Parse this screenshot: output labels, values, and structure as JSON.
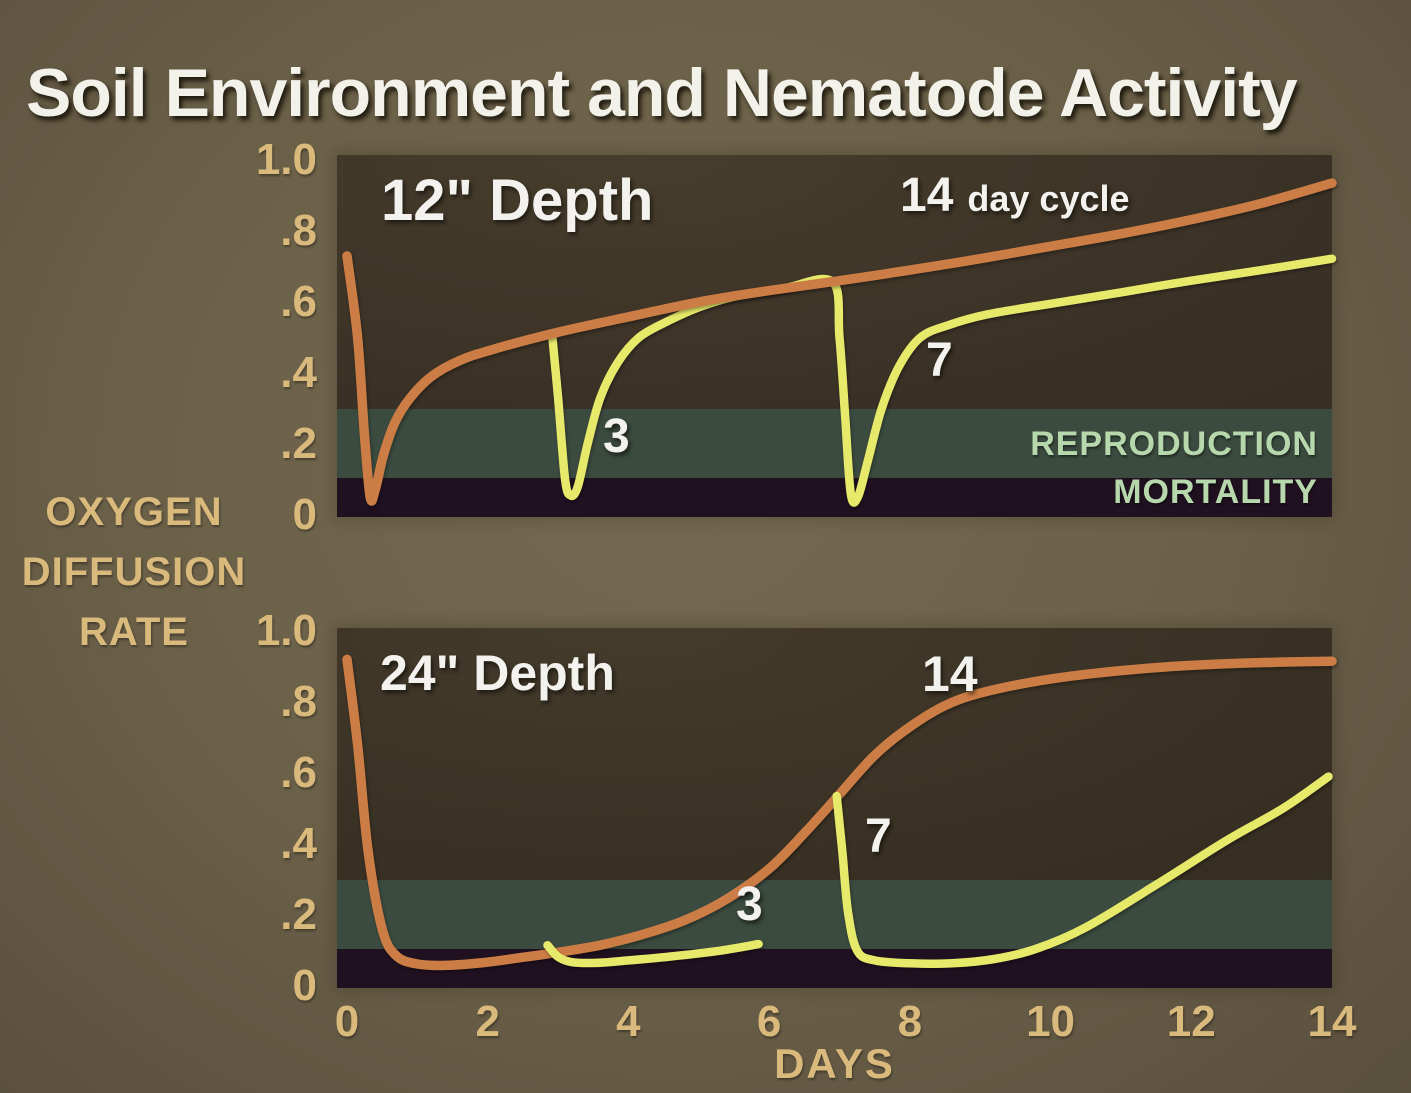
{
  "title": "Soil Environment and Nematode Activity",
  "y_axis": {
    "label_lines": [
      "OXYGEN",
      "DIFFUSION",
      "RATE"
    ]
  },
  "x_axis": {
    "label": "DAYS",
    "ticks": [
      {
        "label": "0",
        "value": 0
      },
      {
        "label": "2",
        "value": 2
      },
      {
        "label": "4",
        "value": 4
      },
      {
        "label": "6",
        "value": 6
      },
      {
        "label": "8",
        "value": 8
      },
      {
        "label": "10",
        "value": 10
      },
      {
        "label": "12",
        "value": 12
      },
      {
        "label": "14",
        "value": 14
      }
    ]
  },
  "colors": {
    "background": "#6b6048",
    "plot_background": "#3a3126",
    "reproduction_band": "#3b4b3f",
    "mortality_band": "#201120",
    "cycle_14_line": "#cb7d45",
    "short_cycle_line": "#e7e96a",
    "axis_text": "#d9ba7c",
    "band_label_text": "#b7d8ac",
    "title_text": "#f2f1ea"
  },
  "chart_data": [
    {
      "type": "line",
      "title": "12\" Depth",
      "x_range": [
        0,
        14
      ],
      "y_range": [
        0,
        1.0
      ],
      "grid": false,
      "legend": "none",
      "ylabel": "OXYGEN DIFFUSION RATE",
      "xlabel": "DAYS",
      "y_ticks": [
        {
          "label": "1.0",
          "value": 1.0
        },
        {
          "label": ".8",
          "value": 0.8
        },
        {
          "label": ".6",
          "value": 0.6
        },
        {
          "label": ".4",
          "value": 0.4
        },
        {
          "label": ".2",
          "value": 0.2
        },
        {
          "label": "0",
          "value": 0
        }
      ],
      "bands": [
        {
          "name": "reproduction",
          "label": "REPRODUCTION",
          "from": 0.105,
          "to": 0.3,
          "color": "#3b4b3f"
        },
        {
          "name": "mortality",
          "label": "MORTALITY",
          "from": 0,
          "to": 0.105,
          "color": "#201120"
        }
      ],
      "annotations": [
        {
          "name": "depth",
          "text": "12\" Depth"
        },
        {
          "name": "cycle-number",
          "text": "14"
        },
        {
          "name": "cycle-suffix",
          "text": "day cycle"
        },
        {
          "name": "dip-3",
          "text": "3"
        },
        {
          "name": "dip-7",
          "text": "7"
        }
      ],
      "series": [
        {
          "name": "3 and 7 day cycles",
          "color": "#e7e96a",
          "width": 8.5,
          "points": [
            [
              2.92,
              0.5
            ],
            [
              3.0,
              0.33
            ],
            [
              3.1,
              0.1
            ],
            [
              3.18,
              0.055
            ],
            [
              3.28,
              0.08
            ],
            [
              3.42,
              0.2
            ],
            [
              3.6,
              0.33
            ],
            [
              3.85,
              0.43
            ],
            [
              4.15,
              0.5
            ],
            [
              4.55,
              0.545
            ],
            [
              5.0,
              0.585
            ],
            [
              5.5,
              0.615
            ],
            [
              6.2,
              0.638
            ],
            [
              6.9,
              0.657
            ],
            [
              7.0,
              0.5
            ],
            [
              7.08,
              0.28
            ],
            [
              7.16,
              0.06
            ],
            [
              7.26,
              0.05
            ],
            [
              7.4,
              0.15
            ],
            [
              7.6,
              0.3
            ],
            [
              7.85,
              0.42
            ],
            [
              8.15,
              0.5
            ],
            [
              8.55,
              0.535
            ],
            [
              9.1,
              0.565
            ],
            [
              10,
              0.595
            ],
            [
              11,
              0.627
            ],
            [
              12,
              0.66
            ],
            [
              13,
              0.69
            ],
            [
              14,
              0.722
            ]
          ]
        },
        {
          "name": "14 day cycle",
          "color": "#cb7d45",
          "width": 9.5,
          "points": [
            [
              0,
              0.73
            ],
            [
              0.15,
              0.5
            ],
            [
              0.25,
              0.22
            ],
            [
              0.33,
              0.05
            ],
            [
              0.4,
              0.07
            ],
            [
              0.52,
              0.17
            ],
            [
              0.68,
              0.26
            ],
            [
              0.9,
              0.33
            ],
            [
              1.2,
              0.39
            ],
            [
              1.6,
              0.435
            ],
            [
              2.1,
              0.468
            ],
            [
              3,
              0.515
            ],
            [
              4,
              0.558
            ],
            [
              5,
              0.6
            ],
            [
              6,
              0.632
            ],
            [
              7,
              0.66
            ],
            [
              8,
              0.69
            ],
            [
              9,
              0.722
            ],
            [
              10,
              0.757
            ],
            [
              11,
              0.792
            ],
            [
              12,
              0.832
            ],
            [
              13,
              0.878
            ],
            [
              14,
              0.935
            ]
          ]
        }
      ]
    },
    {
      "type": "line",
      "title": "24\" Depth",
      "x_range": [
        0,
        14
      ],
      "y_range": [
        0,
        1.0
      ],
      "grid": false,
      "legend": "none",
      "ylabel": "OXYGEN DIFFUSION RATE",
      "xlabel": "DAYS",
      "y_ticks": [
        {
          "label": "1.0",
          "value": 1.0
        },
        {
          "label": ".8",
          "value": 0.8
        },
        {
          "label": ".6",
          "value": 0.6
        },
        {
          "label": ".4",
          "value": 0.4
        },
        {
          "label": ".2",
          "value": 0.2
        },
        {
          "label": "0",
          "value": 0
        }
      ],
      "bands": [
        {
          "name": "reproduction",
          "label": "",
          "from": 0.105,
          "to": 0.3,
          "color": "#3b4b3f"
        },
        {
          "name": "mortality",
          "label": "",
          "from": 0,
          "to": 0.105,
          "color": "#201120"
        }
      ],
      "annotations": [
        {
          "name": "depth",
          "text": "24\" Depth"
        },
        {
          "name": "cycle-14",
          "text": "14"
        },
        {
          "name": "dip-7",
          "text": "7"
        },
        {
          "name": "dip-3",
          "text": "3"
        }
      ],
      "series": [
        {
          "name": "14 day cycle",
          "color": "#cb7d45",
          "width": 9.5,
          "points": [
            [
              0,
              0.92
            ],
            [
              0.15,
              0.68
            ],
            [
              0.3,
              0.38
            ],
            [
              0.5,
              0.16
            ],
            [
              0.7,
              0.085
            ],
            [
              1.0,
              0.062
            ],
            [
              1.4,
              0.058
            ],
            [
              1.9,
              0.065
            ],
            [
              2.4,
              0.078
            ],
            [
              3.0,
              0.095
            ],
            [
              3.6,
              0.115
            ],
            [
              4.2,
              0.145
            ],
            [
              4.8,
              0.185
            ],
            [
              5.4,
              0.245
            ],
            [
              6.0,
              0.33
            ],
            [
              6.5,
              0.43
            ],
            [
              7.0,
              0.54
            ],
            [
              7.5,
              0.65
            ],
            [
              8.0,
              0.73
            ],
            [
              8.5,
              0.79
            ],
            [
              9.0,
              0.825
            ],
            [
              9.7,
              0.855
            ],
            [
              10.5,
              0.878
            ],
            [
              11.5,
              0.897
            ],
            [
              12.5,
              0.908
            ],
            [
              13.2,
              0.912
            ],
            [
              14,
              0.915
            ]
          ]
        },
        {
          "name": "3 day cycle",
          "color": "#e7e96a",
          "width": 8.5,
          "points": [
            [
              2.85,
              0.115
            ],
            [
              3.0,
              0.082
            ],
            [
              3.2,
              0.067
            ],
            [
              3.55,
              0.065
            ],
            [
              4.0,
              0.072
            ],
            [
              4.6,
              0.083
            ],
            [
              5.25,
              0.098
            ],
            [
              5.85,
              0.118
            ]
          ]
        },
        {
          "name": "7 day cycle",
          "color": "#e7e96a",
          "width": 8.5,
          "points": [
            [
              6.96,
              0.535
            ],
            [
              7.04,
              0.38
            ],
            [
              7.12,
              0.21
            ],
            [
              7.25,
              0.1
            ],
            [
              7.5,
              0.072
            ],
            [
              8.0,
              0.064
            ],
            [
              8.6,
              0.064
            ],
            [
              9.2,
              0.076
            ],
            [
              9.8,
              0.105
            ],
            [
              10.5,
              0.165
            ],
            [
              11.5,
              0.285
            ],
            [
              12.5,
              0.41
            ],
            [
              13.3,
              0.5
            ],
            [
              13.95,
              0.59
            ]
          ]
        }
      ]
    }
  ]
}
